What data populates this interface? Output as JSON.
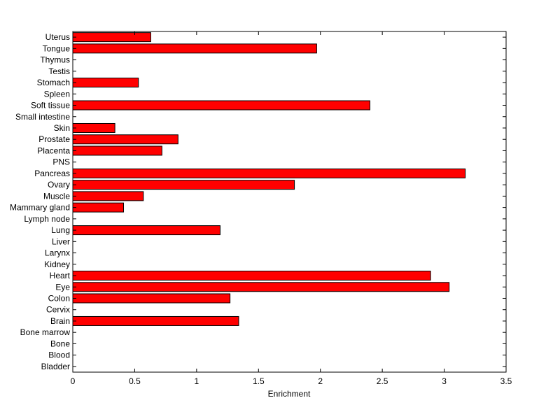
{
  "chart_data": {
    "type": "bar",
    "orientation": "horizontal",
    "categories": [
      "Bladder",
      "Blood",
      "Bone",
      "Bone marrow",
      "Brain",
      "Cervix",
      "Colon",
      "Eye",
      "Heart",
      "Kidney",
      "Larynx",
      "Liver",
      "Lung",
      "Lymph node",
      "Mammary gland",
      "Muscle",
      "Ovary",
      "Pancreas",
      "PNS",
      "Placenta",
      "Prostate",
      "Skin",
      "Small intestine",
      "Soft tissue",
      "Spleen",
      "Stomach",
      "Testis",
      "Thymus",
      "Tongue",
      "Uterus"
    ],
    "values": [
      0,
      0,
      0,
      0,
      1.34,
      0,
      1.27,
      3.04,
      2.89,
      0,
      0,
      0,
      1.19,
      0,
      0.41,
      0.57,
      1.79,
      3.17,
      0,
      0.72,
      0.85,
      0.34,
      0,
      2.4,
      0,
      0.53,
      0,
      0,
      1.97,
      0.63
    ],
    "xlabel": "Enrichment",
    "ylabel": "",
    "title": "",
    "xlim": [
      0,
      3.5
    ],
    "xticks": [
      0,
      0.5,
      1,
      1.5,
      2,
      2.5,
      3,
      3.5
    ],
    "xtick_labels": [
      "0",
      "0.5",
      "1",
      "1.5",
      "2",
      "2.5",
      "3",
      "3.5"
    ],
    "bar_color": "#ff0000",
    "grid": false,
    "legend": "none"
  }
}
